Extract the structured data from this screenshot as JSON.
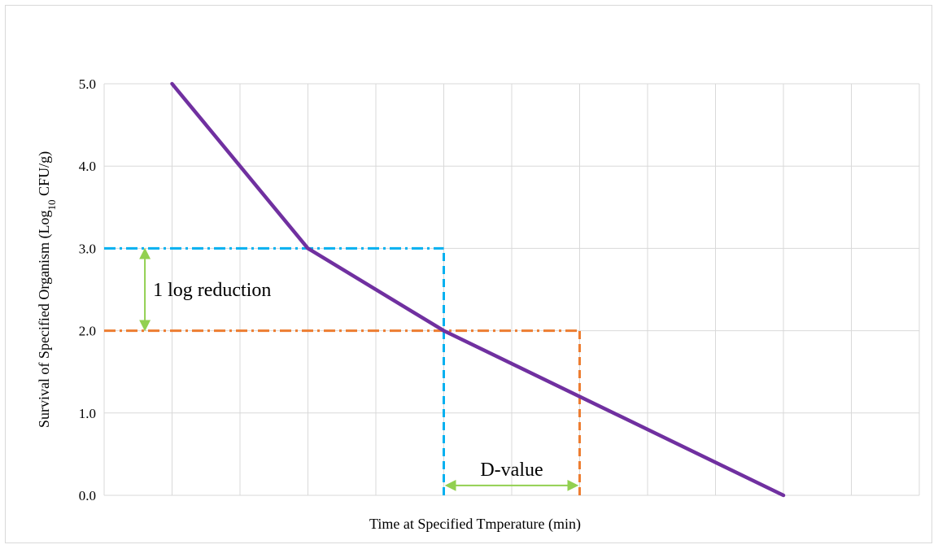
{
  "chart_data": {
    "type": "line",
    "title": "",
    "xlabel": "Time at Specified Tmperature (min)",
    "ylabel_prefix": "Survival of Specified Organism (Log",
    "ylabel_sub": "10",
    "ylabel_suffix": " CFU/g)",
    "ylim": [
      0,
      5
    ],
    "yticks": [
      "0.0",
      "1.0",
      "2.0",
      "3.0",
      "4.0",
      "5.0"
    ],
    "x_gridlines": 12,
    "grid": true,
    "legend": "none",
    "series": [
      {
        "color": "#7030a0",
        "points": [
          [
            1,
            5.0
          ],
          [
            3,
            3.0
          ],
          [
            5,
            2.0
          ],
          [
            10,
            0.0
          ]
        ]
      }
    ],
    "xlim": [
      0,
      12
    ],
    "reference_lines": [
      {
        "kind": "horizontal",
        "y": 3.0,
        "x_from": 0,
        "x_to": 5,
        "color": "#00b0f0",
        "style": "dash-dot"
      },
      {
        "kind": "horizontal",
        "y": 2.0,
        "x_from": 0,
        "x_to": 7,
        "color": "#ed7d31",
        "style": "dash-dot"
      },
      {
        "kind": "vertical",
        "x": 5,
        "y_from": 0,
        "y_to": 3.0,
        "color": "#00b0f0",
        "style": "dashed"
      },
      {
        "kind": "vertical",
        "x": 7,
        "y_from": 0,
        "y_to": 2.0,
        "color": "#ed7d31",
        "style": "dashed"
      }
    ],
    "annotations": [
      {
        "text": "1 log reduction",
        "arrow": "vertical",
        "x": 0.6,
        "y_from": 2.0,
        "y_to": 3.0,
        "color": "#92d050"
      },
      {
        "text": "D-value",
        "arrow": "horizontal",
        "y": 0.12,
        "x_from": 5,
        "x_to": 7,
        "color": "#92d050"
      }
    ]
  }
}
